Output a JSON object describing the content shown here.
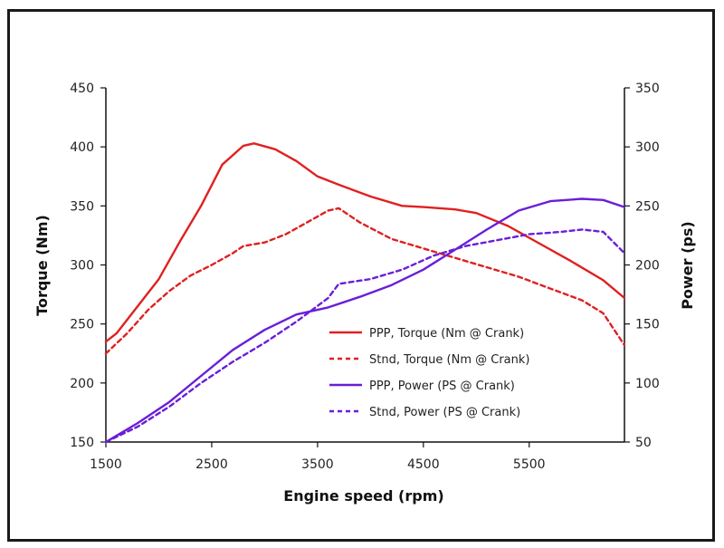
{
  "chart_data": {
    "type": "line",
    "title": "",
    "xlabel": "Engine speed (rpm)",
    "ylabel_left": "Torque (Nm)",
    "ylabel_right": "Power (ps)",
    "xlim": [
      1500,
      6400
    ],
    "ylim_left": [
      150,
      450
    ],
    "ylim_right": [
      50,
      350
    ],
    "x_ticks": [
      1500,
      2500,
      3500,
      4500,
      5500
    ],
    "y_ticks_left": [
      150,
      200,
      250,
      300,
      350,
      400,
      450
    ],
    "y_ticks_right": [
      50,
      100,
      150,
      200,
      250,
      300,
      350
    ],
    "grid": false,
    "legend_position": "center-right",
    "series": [
      {
        "name": "PPP, Torque (Nm @ Crank)",
        "axis": "left",
        "color": "#e02020",
        "dash": "solid",
        "x": [
          1500,
          1600,
          1800,
          2000,
          2200,
          2400,
          2600,
          2800,
          2900,
          3100,
          3300,
          3500,
          3700,
          4000,
          4300,
          4500,
          4800,
          5000,
          5300,
          5600,
          5900,
          6200,
          6400
        ],
        "y": [
          235,
          242,
          265,
          288,
          320,
          350,
          385,
          401,
          403,
          398,
          388,
          375,
          368,
          358,
          350,
          349,
          347,
          344,
          333,
          318,
          303,
          287,
          272
        ]
      },
      {
        "name": "Stnd, Torque (Nm @ Crank)",
        "axis": "left",
        "color": "#e02020",
        "dash": "dashed",
        "x": [
          1500,
          1700,
          1900,
          2100,
          2300,
          2500,
          2700,
          2800,
          3000,
          3200,
          3400,
          3600,
          3700,
          3900,
          4200,
          4500,
          4800,
          5100,
          5400,
          5700,
          6000,
          6200,
          6400
        ],
        "y": [
          225,
          242,
          262,
          278,
          291,
          300,
          310,
          316,
          319,
          326,
          336,
          346,
          348,
          336,
          322,
          314,
          306,
          298,
          290,
          280,
          270,
          259,
          232
        ]
      },
      {
        "name": "PPP, Power (PS @ Crank)",
        "axis": "right",
        "color": "#6a1ed8",
        "dash": "solid",
        "x": [
          1500,
          1800,
          2100,
          2400,
          2700,
          3000,
          3300,
          3600,
          3900,
          4200,
          4500,
          4800,
          5100,
          5400,
          5700,
          6000,
          6200,
          6400
        ],
        "y": [
          50,
          66,
          84,
          106,
          128,
          145,
          158,
          164,
          173,
          183,
          196,
          213,
          230,
          246,
          254,
          256,
          255,
          249
        ]
      },
      {
        "name": "Stnd, Power (PS @ Crank)",
        "axis": "right",
        "color": "#6a1ed8",
        "dash": "dashed",
        "x": [
          1500,
          1800,
          2100,
          2400,
          2700,
          3000,
          3300,
          3600,
          3700,
          4000,
          4300,
          4600,
          4900,
          5200,
          5500,
          5800,
          6000,
          6200,
          6400
        ],
        "y": [
          50,
          63,
          80,
          100,
          118,
          134,
          152,
          172,
          184,
          188,
          196,
          208,
          216,
          221,
          226,
          228,
          230,
          228,
          210
        ]
      }
    ]
  }
}
